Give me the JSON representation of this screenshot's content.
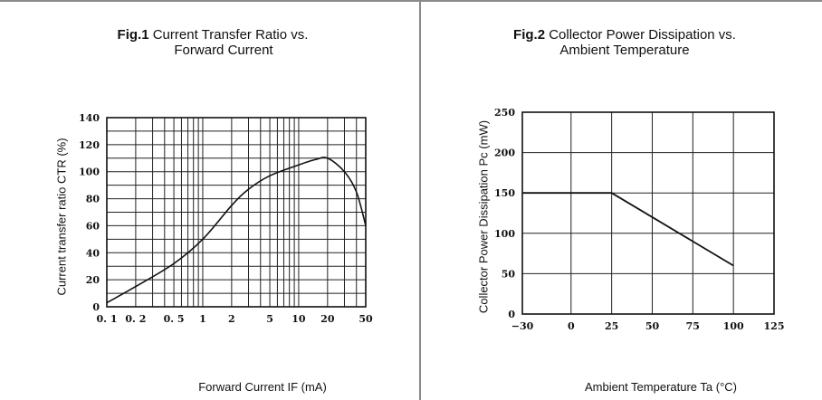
{
  "chart_data": [
    {
      "type": "line",
      "title_prefix": "Fig.1",
      "title_line1": "Current Transfer Ratio vs.",
      "title_line2": "Forward Current",
      "xlabel": "Forward Current IF (mA)",
      "ylabel": "Current transfer ratio CTR (%)",
      "x_scale": "log",
      "xlim": [
        0.1,
        50
      ],
      "ylim": [
        0,
        140
      ],
      "x_ticks": [
        0.1,
        0.2,
        0.5,
        1,
        2,
        5,
        10,
        20,
        50
      ],
      "x_tick_labels": [
        "0. 1",
        "0. 2",
        "0. 5",
        "1",
        "2",
        "5",
        "10",
        "20",
        "50"
      ],
      "y_ticks": [
        0,
        20,
        40,
        60,
        80,
        100,
        120,
        140
      ],
      "y_tick_labels": [
        "0",
        "20",
        "40",
        "60",
        "80",
        "100",
        "120",
        "140"
      ],
      "grid": true,
      "x": [
        0.1,
        0.2,
        0.5,
        1,
        2,
        3,
        5,
        10,
        15,
        20,
        30,
        40,
        50
      ],
      "y": [
        3,
        15,
        32,
        50,
        75,
        87,
        97,
        105,
        109,
        110,
        100,
        85,
        60
      ]
    },
    {
      "type": "line",
      "title_prefix": "Fig.2",
      "title_line1": "Collector Power Dissipation vs.",
      "title_line2": "Ambient Temperature",
      "xlabel": "Ambient Temperature Ta (°C)",
      "ylabel": "Collector Power Dissipation Pc (mW)",
      "xlim": [
        -30,
        125
      ],
      "ylim": [
        0,
        250
      ],
      "x_ticks": [
        -30,
        0,
        25,
        50,
        75,
        100,
        125
      ],
      "x_tick_labels": [
        "−30",
        "0",
        "25",
        "50",
        "75",
        "100",
        "125"
      ],
      "y_ticks": [
        0,
        50,
        100,
        150,
        200,
        250
      ],
      "y_tick_labels": [
        "0",
        "50",
        "100",
        "150",
        "200",
        "250"
      ],
      "grid": true,
      "x": [
        -30,
        25,
        100
      ],
      "y": [
        150,
        150,
        60
      ]
    }
  ]
}
